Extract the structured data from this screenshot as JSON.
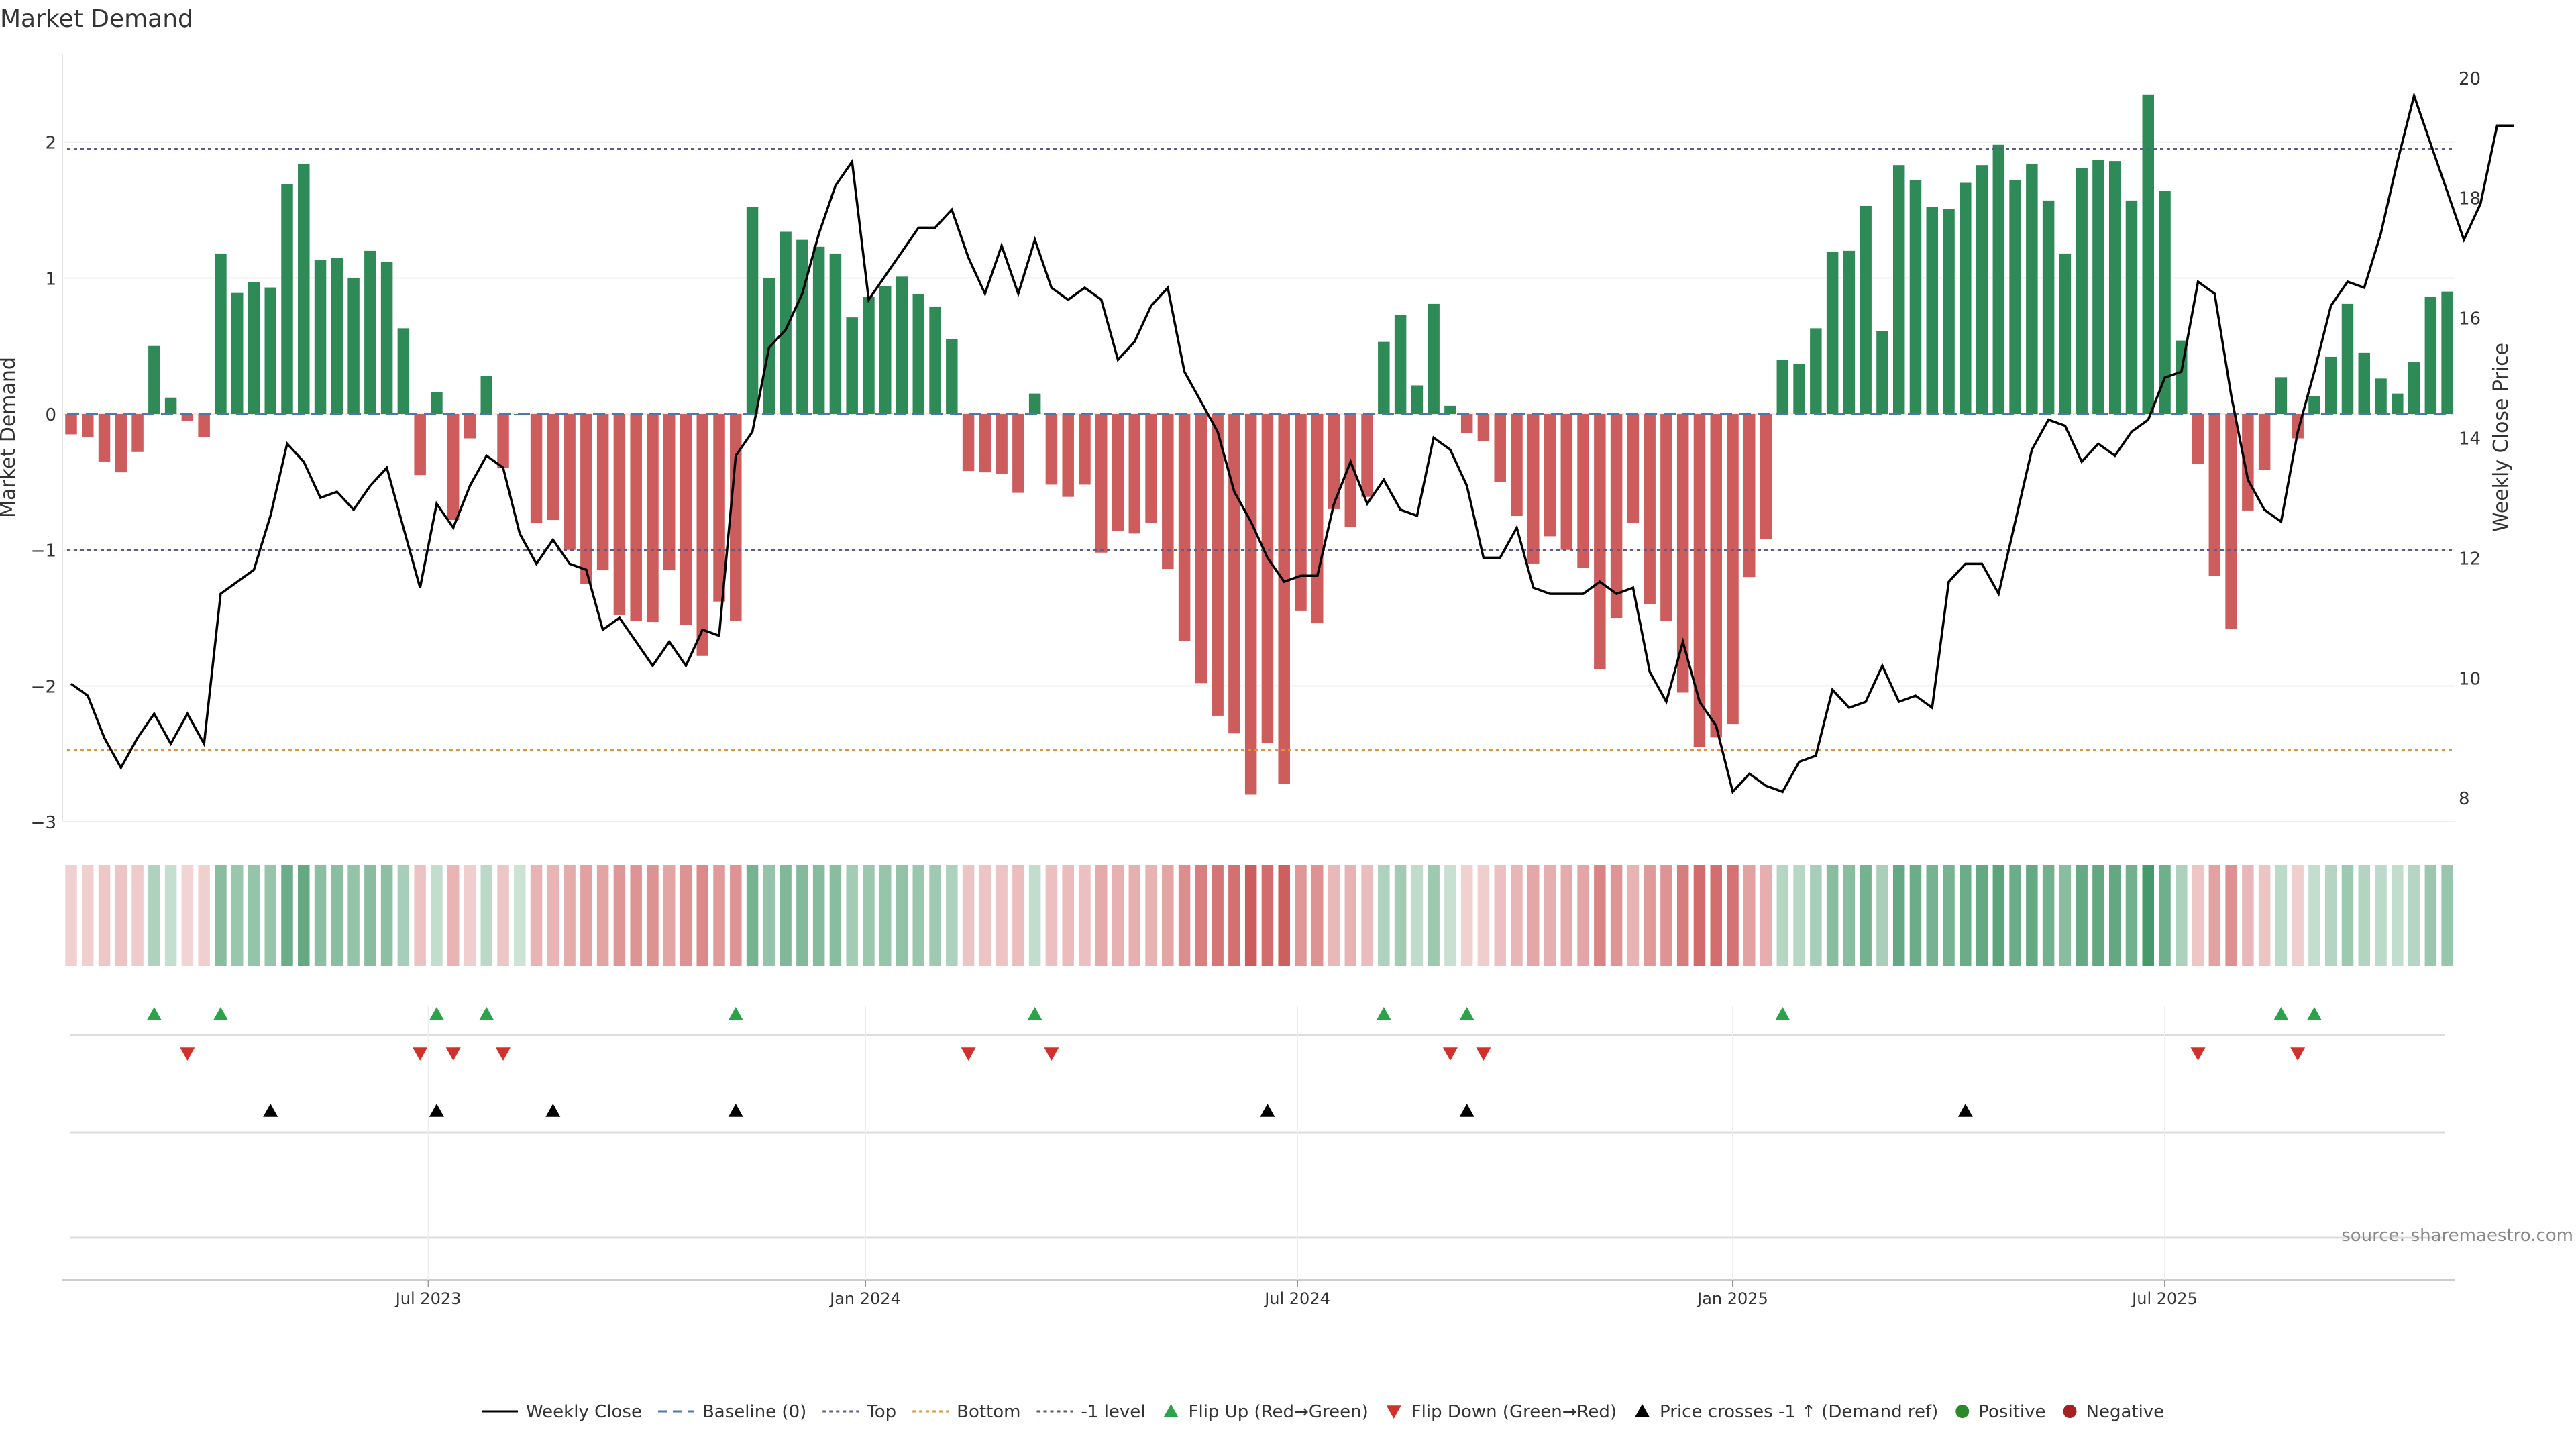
{
  "chart_data": {
    "type": "bar",
    "title": "Market Demand",
    "ylabel": "Market Demand",
    "y2label": "Weekly Close Price",
    "source": "source: sharemaestro.com",
    "ylim": [
      -3.0,
      2.65
    ],
    "y2lim": [
      7.6,
      20.4
    ],
    "yticks": [
      "2",
      "1",
      "0",
      "−1",
      "−2",
      "−3"
    ],
    "yticks_values": [
      2,
      1,
      0,
      -1,
      -2,
      -3
    ],
    "y2ticks": [
      "20",
      "18",
      "16",
      "14",
      "12",
      "10",
      "8"
    ],
    "y2ticks_values": [
      20,
      18,
      16,
      14,
      12,
      10,
      8
    ],
    "xticks": [
      "Jul 2023",
      "Jan 2024",
      "Jul 2024",
      "Jan 2025",
      "Jul 2025"
    ],
    "xticks_week_index": [
      21.5,
      47.8,
      73.8,
      100,
      126
    ],
    "levels": {
      "top": 1.95,
      "bottom": -2.47,
      "minus_one": -1.0
    },
    "n_weeks": 144,
    "colors": {
      "positive": "#2e8b57",
      "negative": "#cd5c5c",
      "price": "#000000",
      "top": "#5b5b8c",
      "bottom": "#e8922e",
      "baseline": "#4a78b0",
      "flip_up": "#2ca24a",
      "flip_down": "#d0312d",
      "cross": "#000000",
      "dot_positive": "#2a8a2a",
      "dot_negative": "#a52020"
    },
    "demand": [
      -0.15,
      -0.17,
      -0.35,
      -0.43,
      -0.28,
      0.5,
      0.12,
      -0.05,
      -0.17,
      1.18,
      0.89,
      0.97,
      0.93,
      1.69,
      1.84,
      1.13,
      1.15,
      1.0,
      1.2,
      1.12,
      0.63,
      -0.45,
      0.16,
      -0.78,
      -0.18,
      0.28,
      -0.4,
      0.0,
      -0.8,
      -0.78,
      -1.0,
      -1.25,
      -1.15,
      -1.48,
      -1.52,
      -1.53,
      -1.15,
      -1.55,
      -1.78,
      -1.38,
      -1.52,
      1.52,
      1.0,
      1.34,
      1.28,
      1.23,
      1.18,
      0.71,
      0.86,
      0.94,
      1.01,
      0.88,
      0.79,
      0.55,
      -0.42,
      -0.43,
      -0.44,
      -0.58,
      0.15,
      -0.52,
      -0.61,
      -0.52,
      -1.02,
      -0.86,
      -0.88,
      -0.8,
      -1.14,
      -1.67,
      -1.98,
      -2.22,
      -2.35,
      -2.8,
      -2.42,
      -2.72,
      -1.45,
      -1.54,
      -0.7,
      -0.83,
      -0.61,
      0.53,
      0.73,
      0.21,
      0.81,
      0.06,
      -0.14,
      -0.2,
      -0.5,
      -0.75,
      -1.1,
      -0.9,
      -1.0,
      -1.13,
      -1.88,
      -1.5,
      -0.8,
      -1.4,
      -1.52,
      -2.05,
      -2.45,
      -2.38,
      -2.28,
      -1.2,
      -0.92,
      0.4,
      0.37,
      0.63,
      1.19,
      1.2,
      1.53,
      0.61,
      1.83,
      1.72,
      1.52,
      1.51,
      1.7,
      1.83,
      1.98,
      1.72,
      1.84,
      1.57,
      1.18,
      1.81,
      1.87,
      1.86,
      1.57,
      2.35,
      1.64,
      0.54,
      -0.37,
      -1.19,
      -1.58,
      -0.71,
      -0.41,
      0.27,
      -0.18,
      0.13,
      0.42,
      0.81,
      0.45,
      0.26,
      0.15,
      0.38,
      0.86,
      0.9
    ],
    "price": [
      9.9,
      9.7,
      9.0,
      8.5,
      9.0,
      9.4,
      8.9,
      9.4,
      8.9,
      11.4,
      11.6,
      11.8,
      12.7,
      13.9,
      13.6,
      13.0,
      13.1,
      12.8,
      13.2,
      13.5,
      12.5,
      11.5,
      12.9,
      12.5,
      13.2,
      13.7,
      13.5,
      12.4,
      11.9,
      12.3,
      11.9,
      11.8,
      10.8,
      11.0,
      10.6,
      10.2,
      10.6,
      10.2,
      10.8,
      10.7,
      13.7,
      14.1,
      15.5,
      15.8,
      16.4,
      17.4,
      18.2,
      18.6,
      16.3,
      16.7,
      17.1,
      17.5,
      17.5,
      17.8,
      17.0,
      16.4,
      17.2,
      16.4,
      17.3,
      16.5,
      16.3,
      16.5,
      16.3,
      15.3,
      15.6,
      16.2,
      16.5,
      15.1,
      14.6,
      14.1,
      13.1,
      12.6,
      12.0,
      11.6,
      11.7,
      11.7,
      12.9,
      13.6,
      12.9,
      13.3,
      12.8,
      12.7,
      14.0,
      13.8,
      13.2,
      12.0,
      12.0,
      12.5,
      11.5,
      11.4,
      11.4,
      11.4,
      11.6,
      11.4,
      11.5,
      10.1,
      9.6,
      10.6,
      9.6,
      9.2,
      8.1,
      8.4,
      8.2,
      8.1,
      8.6,
      8.7,
      9.8,
      9.5,
      9.6,
      10.2,
      9.6,
      9.7,
      9.5,
      11.6,
      11.9,
      11.9,
      11.4,
      12.6,
      13.8,
      14.3,
      14.2,
      13.6,
      13.9,
      13.7,
      14.1,
      14.3,
      15.0,
      15.1,
      16.6,
      16.4,
      14.7,
      13.3,
      12.8,
      12.6,
      14.1,
      15.1,
      16.2,
      16.6,
      16.5,
      17.4,
      18.6,
      19.7,
      18.9,
      18.1,
      17.3,
      17.9,
      19.2,
      19.2
    ],
    "flip_up": [
      5,
      9,
      22,
      25,
      40,
      58,
      79,
      84,
      103,
      133,
      135
    ],
    "flip_down": [
      7,
      21,
      23,
      26,
      54,
      59,
      83,
      85,
      128,
      134
    ],
    "price_cross_up": [
      12,
      22,
      29,
      40,
      72,
      84,
      114
    ],
    "legend": [
      {
        "name": "Weekly Close",
        "kind": "line-solid"
      },
      {
        "name": "Baseline (0)",
        "kind": "line-dash-blue"
      },
      {
        "name": "Top",
        "kind": "line-dot-purple"
      },
      {
        "name": "Bottom",
        "kind": "line-dot-orange"
      },
      {
        "name": "-1 level",
        "kind": "line-dot-gray"
      },
      {
        "name": "Flip Up (Red→Green)",
        "kind": "tri-up-green"
      },
      {
        "name": "Flip Down (Green→Red)",
        "kind": "tri-down-red"
      },
      {
        "name": "Price crosses -1 ↑ (Demand ref)",
        "kind": "tri-up-black"
      },
      {
        "name": "Positive",
        "kind": "dot-green"
      },
      {
        "name": "Negative",
        "kind": "dot-red"
      }
    ]
  }
}
